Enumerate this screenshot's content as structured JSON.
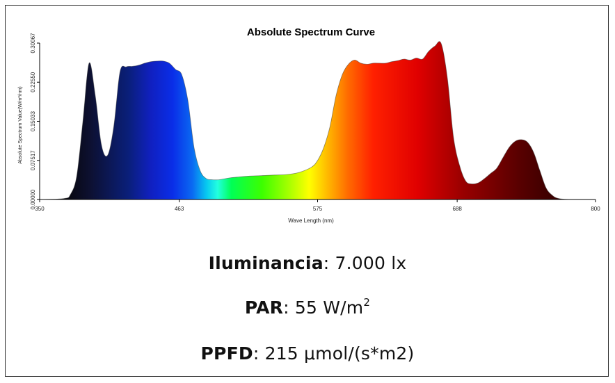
{
  "chart_data": {
    "type": "area",
    "title": "Absolute Spectrum Curve",
    "xlabel": "Wave Length (nm)",
    "ylabel": "Absolute Spectrum Value(W/m²/nm)",
    "xlim": [
      350,
      800
    ],
    "ylim": [
      0,
      0.30067
    ],
    "x_ticks": [
      350,
      463,
      575,
      688,
      800
    ],
    "x_tick_labels": [
      "350",
      "463",
      "575",
      "688",
      "800"
    ],
    "y_ticks": [
      0,
      0.07517,
      0.15033,
      0.2255,
      0.30067
    ],
    "y_tick_labels": [
      "0.00000",
      "0.07517",
      "0.15033",
      "0.22550",
      "0.30067"
    ],
    "grid": false,
    "fill": "wavelength-color-gradient",
    "series": [
      {
        "x": [
          350,
          370,
          375,
          380,
          385,
          390,
          395,
          400,
          405,
          410,
          415,
          420,
          425,
          430,
          435,
          440,
          445,
          450,
          455,
          460,
          465,
          470,
          475,
          480,
          485,
          490,
          495,
          500,
          505,
          510,
          520,
          530,
          540,
          550,
          560,
          570,
          575,
          580,
          585,
          590,
          595,
          600,
          605,
          610,
          615,
          620,
          625,
          630,
          635,
          640,
          645,
          650,
          655,
          660,
          665,
          670,
          675,
          680,
          685,
          690,
          695,
          700,
          705,
          710,
          715,
          720,
          725,
          730,
          735,
          740,
          745,
          750,
          755,
          760,
          765,
          770,
          780,
          790,
          800
        ],
        "y": [
          0,
          0.002,
          0.01,
          0.045,
          0.15,
          0.262,
          0.2,
          0.105,
          0.085,
          0.14,
          0.245,
          0.255,
          0.256,
          0.258,
          0.262,
          0.265,
          0.266,
          0.266,
          0.262,
          0.25,
          0.24,
          0.19,
          0.1,
          0.055,
          0.04,
          0.038,
          0.038,
          0.04,
          0.042,
          0.043,
          0.045,
          0.046,
          0.047,
          0.048,
          0.052,
          0.062,
          0.075,
          0.1,
          0.14,
          0.2,
          0.24,
          0.26,
          0.268,
          0.262,
          0.26,
          0.262,
          0.262,
          0.262,
          0.265,
          0.267,
          0.27,
          0.268,
          0.272,
          0.27,
          0.285,
          0.295,
          0.3,
          0.235,
          0.12,
          0.065,
          0.035,
          0.03,
          0.032,
          0.04,
          0.05,
          0.06,
          0.08,
          0.1,
          0.112,
          0.115,
          0.11,
          0.09,
          0.055,
          0.022,
          0.008,
          0.002,
          0,
          0,
          0
        ]
      }
    ]
  },
  "metrics": {
    "illuminance": {
      "label": "Iluminancia",
      "value": ": 7.000 lx"
    },
    "par": {
      "label": "PAR",
      "value": ": 55 W/m",
      "sup": "2"
    },
    "ppfd": {
      "label": "PPFD",
      "value": ": 215  μmol/(s*m2)"
    }
  }
}
